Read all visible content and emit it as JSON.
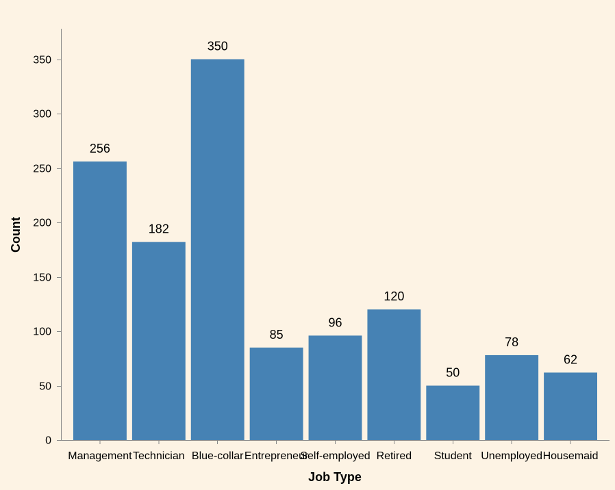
{
  "colors": {
    "background": "#fdf3e4",
    "bar": "#4682b4",
    "axis": "#888888",
    "text": "#000000"
  },
  "chart_data": {
    "type": "bar",
    "title": "",
    "xlabel": "Job Type",
    "ylabel": "Count",
    "categories": [
      "Management",
      "Technician",
      "Blue-collar",
      "Entrepreneur",
      "Self-employed",
      "Retired",
      "Student",
      "Unemployed",
      "Housemaid"
    ],
    "values": [
      256,
      182,
      350,
      85,
      96,
      120,
      50,
      78,
      62
    ],
    "ylim": [
      0,
      378
    ],
    "yticks": [
      0,
      50,
      100,
      150,
      200,
      250,
      300,
      350
    ],
    "grid": false,
    "data_labels": true,
    "legend": "none"
  }
}
